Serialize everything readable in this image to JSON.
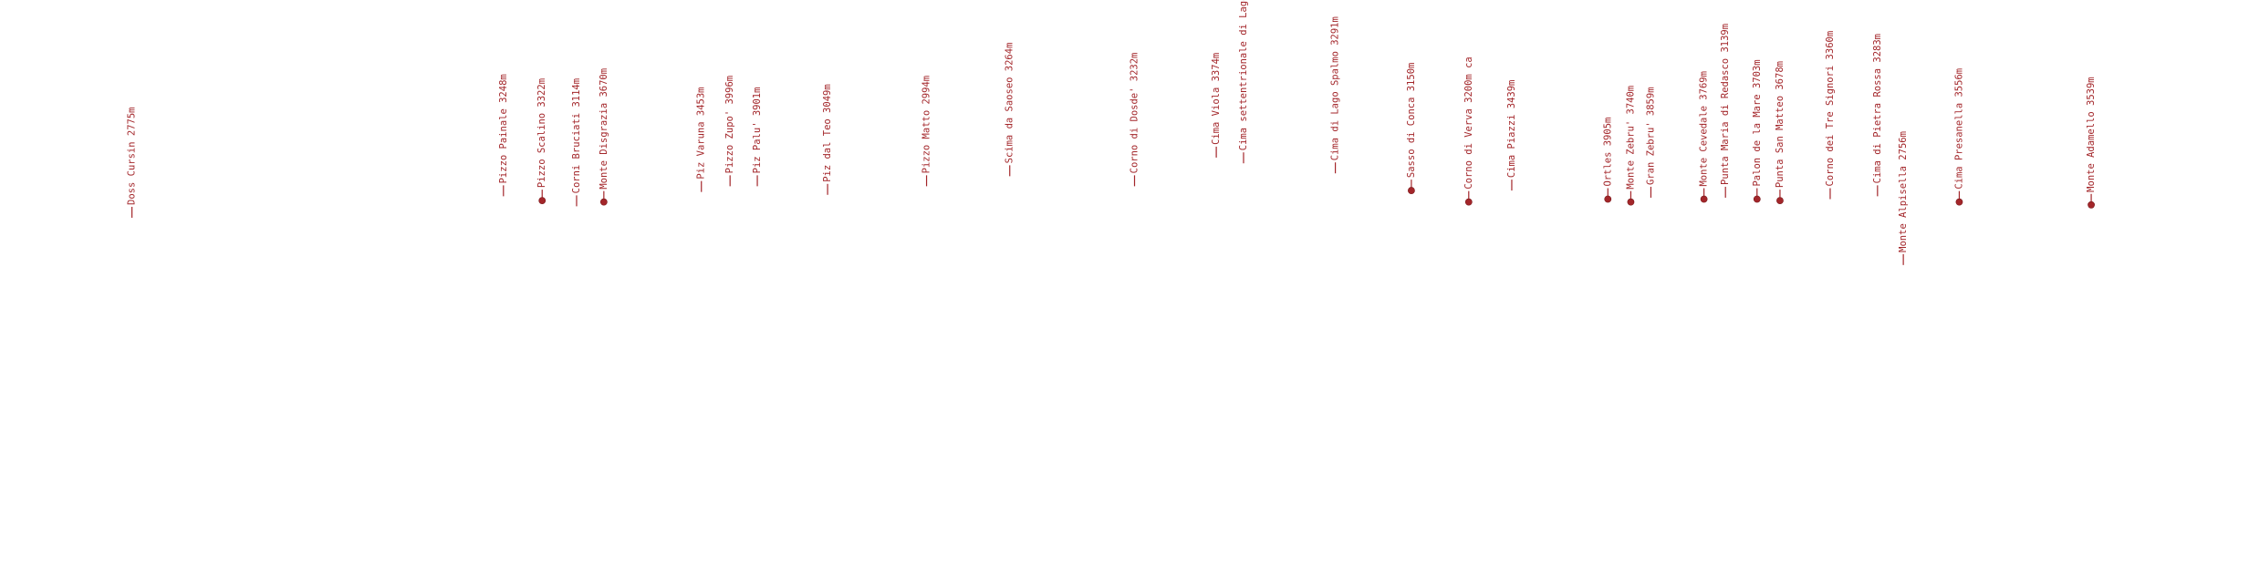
{
  "peaks": [
    {
      "label": "Doss Cursin 2775m"
    },
    {
      "label": "Pizzo Painale 3248m"
    },
    {
      "label": "Pizzo Scalino 3322m"
    },
    {
      "label": "Corni Bruciati 3114m"
    },
    {
      "label": "Monte Disgrazia 3670m"
    },
    {
      "label": "Piz Varuna 3453m"
    },
    {
      "label": "Pizzo Zupo' 3996m"
    },
    {
      "label": "Piz Palu' 3901m"
    },
    {
      "label": "Piz dal Teo 3049m"
    },
    {
      "label": "Pizzo Matto 2994m"
    },
    {
      "label": "Scima da Saoseo 3264m"
    },
    {
      "label": "Corno di Dosde' 3232m"
    },
    {
      "label": "Cima Viola 3374m"
    },
    {
      "label": "Cima settentrionale di Lago"
    },
    {
      "label": "Cima di Lago Spalmo 3291m"
    },
    {
      "label": "Sasso di Conca 3150m"
    },
    {
      "label": "Corno di Verva 3200m ca"
    },
    {
      "label": "Cima Piazzi 3439m"
    },
    {
      "label": "Ortles 3905m"
    },
    {
      "label": "Monte Zebru' 3740m"
    },
    {
      "label": "Gran Zebru' 3859m"
    },
    {
      "label": "Monte Cevedale 3769m"
    },
    {
      "label": "Punta Maria di Redasco 3139m"
    },
    {
      "label": "Palon de la Mare 3703m"
    },
    {
      "label": "Punta San Matteo 3678m"
    },
    {
      "label": "Corno dei Tre Signori 3360m"
    },
    {
      "label": "Cima di Pietra Rossa 3283m"
    },
    {
      "label": "Monte Alpisella 2756m"
    },
    {
      "label": "Cima Presanella 3556m"
    },
    {
      "label": "Monte Adamello 3539m"
    }
  ]
}
